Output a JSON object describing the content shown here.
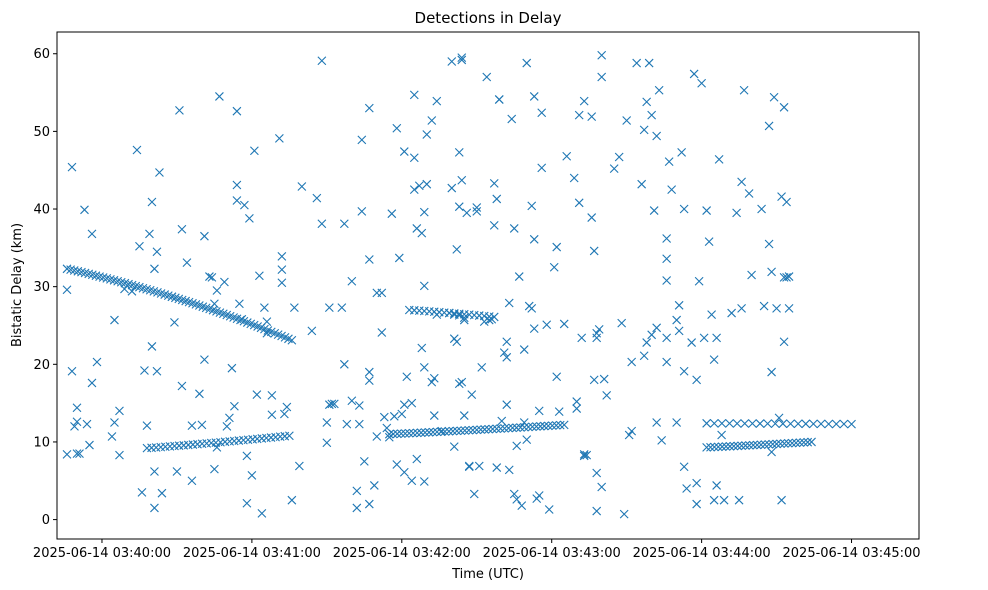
{
  "chart_data": {
    "type": "scatter",
    "title": "Detections in Delay",
    "xlabel": "Time (UTC)",
    "ylabel": "Bistatic Delay (km)",
    "marker": "x",
    "color": "#1f77b4",
    "x_unit": "seconds since 2025-06-14 03:40:00",
    "xlim": [
      -18,
      327
    ],
    "ylim": [
      -2.5,
      62.8
    ],
    "x_ticks": [
      {
        "value": 0,
        "label": "2025-06-14 03:40:00"
      },
      {
        "value": 60,
        "label": "2025-06-14 03:41:00"
      },
      {
        "value": 120,
        "label": "2025-06-14 03:42:00"
      },
      {
        "value": 180,
        "label": "2025-06-14 03:43:00"
      },
      {
        "value": 240,
        "label": "2025-06-14 03:44:00"
      },
      {
        "value": 300,
        "label": "2025-06-14 03:45:00"
      }
    ],
    "y_ticks": [
      {
        "value": 0,
        "label": "0"
      },
      {
        "value": 10,
        "label": "10"
      },
      {
        "value": 20,
        "label": "20"
      },
      {
        "value": 30,
        "label": "30"
      },
      {
        "value": 40,
        "label": "40"
      },
      {
        "value": 50,
        "label": "50"
      },
      {
        "value": 60,
        "label": "60"
      }
    ],
    "tracks": [
      {
        "name": "track-upper-1",
        "t_start": -14,
        "t_end": 28,
        "y_start": 32.3,
        "y_end": 28.7,
        "count": 30
      },
      {
        "name": "track-upper-2",
        "t_start": 28,
        "t_end": 76,
        "y_start": 28.7,
        "y_end": 23.1,
        "count": 36
      },
      {
        "name": "track-lower-1",
        "t_start": 18,
        "t_end": 75,
        "y_start": 9.2,
        "y_end": 10.8,
        "count": 32
      },
      {
        "name": "track-middle",
        "t_start": 123,
        "t_end": 157,
        "y_start": 27.0,
        "y_end": 26.1,
        "count": 18
      },
      {
        "name": "track-lower-2",
        "t_start": 115,
        "t_end": 185,
        "y_start": 11.0,
        "y_end": 12.2,
        "count": 45
      },
      {
        "name": "track-lower-3",
        "t_start": 242,
        "t_end": 284,
        "y_start": 9.3,
        "y_end": 10.0,
        "count": 28
      },
      {
        "name": "track-lower-4",
        "t_start": 242,
        "t_end": 300,
        "y_start": 12.4,
        "y_end": 12.3,
        "count": 20
      }
    ],
    "points": [
      [
        -14,
        29.6
      ],
      [
        -14,
        8.4
      ],
      [
        -12,
        45.4
      ],
      [
        -12,
        19.1
      ],
      [
        -11,
        12.0
      ],
      [
        -10,
        12.6
      ],
      [
        -10,
        14.4
      ],
      [
        -10,
        8.5
      ],
      [
        -9,
        8.5
      ],
      [
        -7,
        39.9
      ],
      [
        -6,
        12.3
      ],
      [
        -5,
        9.6
      ],
      [
        -4,
        36.8
      ],
      [
        -4,
        17.6
      ],
      [
        -2,
        20.3
      ],
      [
        4,
        10.7
      ],
      [
        5,
        25.7
      ],
      [
        5,
        12.5
      ],
      [
        7,
        14.0
      ],
      [
        7,
        8.3
      ],
      [
        9,
        29.7
      ],
      [
        12,
        29.4
      ],
      [
        14,
        47.6
      ],
      [
        15,
        35.2
      ],
      [
        16,
        3.5
      ],
      [
        17,
        19.2
      ],
      [
        18,
        12.1
      ],
      [
        19,
        36.8
      ],
      [
        20,
        40.9
      ],
      [
        20,
        22.3
      ],
      [
        21,
        32.3
      ],
      [
        21,
        6.2
      ],
      [
        21,
        1.5
      ],
      [
        22,
        34.5
      ],
      [
        22,
        19.1
      ],
      [
        23,
        44.7
      ],
      [
        24,
        3.4
      ],
      [
        29,
        25.4
      ],
      [
        30,
        6.2
      ],
      [
        31,
        52.7
      ],
      [
        32,
        37.4
      ],
      [
        32,
        17.2
      ],
      [
        34,
        33.1
      ],
      [
        36,
        12.1
      ],
      [
        36,
        5.0
      ],
      [
        39,
        16.2
      ],
      [
        40,
        12.2
      ],
      [
        41,
        36.5
      ],
      [
        41,
        20.6
      ],
      [
        43,
        31.3
      ],
      [
        44,
        31.2
      ],
      [
        45,
        27.8
      ],
      [
        45,
        6.5
      ],
      [
        46,
        9.3
      ],
      [
        46,
        29.5
      ],
      [
        47,
        54.5
      ],
      [
        49,
        30.6
      ],
      [
        50,
        12.0
      ],
      [
        51,
        13.1
      ],
      [
        52,
        19.5
      ],
      [
        53,
        14.6
      ],
      [
        54,
        43.1
      ],
      [
        54,
        41.1
      ],
      [
        54,
        52.6
      ],
      [
        55,
        27.8
      ],
      [
        56,
        25.8
      ],
      [
        57,
        40.5
      ],
      [
        58,
        2.1
      ],
      [
        58,
        8.2
      ],
      [
        59,
        38.8
      ],
      [
        60,
        5.7
      ],
      [
        61,
        47.5
      ],
      [
        62,
        16.1
      ],
      [
        63,
        31.4
      ],
      [
        64,
        0.8
      ],
      [
        65,
        27.3
      ],
      [
        66,
        25.5
      ],
      [
        66,
        24.0
      ],
      [
        68,
        16.0
      ],
      [
        68,
        13.5
      ],
      [
        71,
        49.1
      ],
      [
        72,
        33.9
      ],
      [
        72,
        32.2
      ],
      [
        72,
        30.5
      ],
      [
        73,
        13.6
      ],
      [
        74,
        14.5
      ],
      [
        76,
        2.5
      ],
      [
        77,
        27.3
      ],
      [
        79,
        6.9
      ],
      [
        80,
        42.9
      ],
      [
        84,
        24.3
      ],
      [
        86,
        41.4
      ],
      [
        88,
        59.1
      ],
      [
        88,
        38.1
      ],
      [
        90,
        9.9
      ],
      [
        90,
        12.5
      ],
      [
        91,
        14.8
      ],
      [
        91,
        27.3
      ],
      [
        92,
        14.9
      ],
      [
        93,
        14.9
      ],
      [
        96,
        27.3
      ],
      [
        97,
        20.0
      ],
      [
        97,
        38.1
      ],
      [
        98,
        12.3
      ],
      [
        100,
        15.3
      ],
      [
        100,
        30.7
      ],
      [
        102,
        3.7
      ],
      [
        102,
        1.5
      ],
      [
        103,
        14.7
      ],
      [
        103,
        12.3
      ],
      [
        104,
        39.7
      ],
      [
        104,
        48.9
      ],
      [
        105,
        7.5
      ],
      [
        107,
        19.0
      ],
      [
        107,
        17.9
      ],
      [
        107,
        33.5
      ],
      [
        107,
        53.0
      ],
      [
        107,
        2.0
      ],
      [
        109,
        4.4
      ],
      [
        110,
        29.2
      ],
      [
        110,
        10.7
      ],
      [
        112,
        24.1
      ],
      [
        112,
        29.2
      ],
      [
        113,
        13.2
      ],
      [
        114,
        11.8
      ],
      [
        115,
        10.6
      ],
      [
        116,
        39.4
      ],
      [
        117,
        13.3
      ],
      [
        118,
        50.4
      ],
      [
        118,
        7.1
      ],
      [
        119,
        33.7
      ],
      [
        120,
        13.6
      ],
      [
        121,
        47.4
      ],
      [
        121,
        6.1
      ],
      [
        121,
        14.8
      ],
      [
        122,
        18.4
      ],
      [
        124,
        5.0
      ],
      [
        124,
        15.0
      ],
      [
        125,
        54.7
      ],
      [
        125,
        42.5
      ],
      [
        125,
        46.6
      ],
      [
        126,
        7.8
      ],
      [
        126,
        37.5
      ],
      [
        127,
        43.0
      ],
      [
        128,
        36.9
      ],
      [
        128,
        22.1
      ],
      [
        129,
        30.1
      ],
      [
        129,
        19.6
      ],
      [
        129,
        39.6
      ],
      [
        129,
        4.9
      ],
      [
        130,
        49.6
      ],
      [
        130,
        43.2
      ],
      [
        132,
        17.7
      ],
      [
        132,
        51.4
      ],
      [
        133,
        13.4
      ],
      [
        133,
        18.2
      ],
      [
        134,
        53.9
      ],
      [
        134,
        26.4
      ],
      [
        136,
        11.4
      ],
      [
        139,
        26.6
      ],
      [
        140,
        59.0
      ],
      [
        140,
        42.7
      ],
      [
        141,
        26.4
      ],
      [
        141,
        9.4
      ],
      [
        141,
        23.3
      ],
      [
        142,
        34.8
      ],
      [
        142,
        22.9
      ],
      [
        143,
        26.3
      ],
      [
        143,
        17.5
      ],
      [
        143,
        40.3
      ],
      [
        143,
        47.3
      ],
      [
        144,
        17.7
      ],
      [
        144,
        59.2
      ],
      [
        144,
        59.5
      ],
      [
        144,
        43.7
      ],
      [
        145,
        26.0
      ],
      [
        145,
        25.7
      ],
      [
        145,
        13.4
      ],
      [
        146,
        39.5
      ],
      [
        147,
        6.8
      ],
      [
        147,
        6.9
      ],
      [
        148,
        16.1
      ],
      [
        149,
        3.3
      ],
      [
        150,
        40.2
      ],
      [
        150,
        39.7
      ],
      [
        151,
        6.9
      ],
      [
        152,
        19.6
      ],
      [
        153,
        25.5
      ],
      [
        154,
        57.0
      ],
      [
        155,
        25.7
      ],
      [
        156,
        25.8
      ],
      [
        157,
        43.3
      ],
      [
        157,
        37.9
      ],
      [
        158,
        41.3
      ],
      [
        158,
        6.7
      ],
      [
        159,
        54.1
      ],
      [
        159,
        54.1
      ],
      [
        160,
        12.7
      ],
      [
        161,
        21.5
      ],
      [
        162,
        14.8
      ],
      [
        162,
        22.9
      ],
      [
        162,
        20.9
      ],
      [
        163,
        27.9
      ],
      [
        163,
        6.4
      ],
      [
        164,
        51.6
      ],
      [
        165,
        37.5
      ],
      [
        165,
        3.3
      ],
      [
        166,
        2.6
      ],
      [
        166,
        9.5
      ],
      [
        167,
        31.3
      ],
      [
        168,
        1.8
      ],
      [
        169,
        12.5
      ],
      [
        169,
        21.9
      ],
      [
        170,
        58.8
      ],
      [
        170,
        10.3
      ],
      [
        171,
        27.5
      ],
      [
        172,
        27.2
      ],
      [
        172,
        40.4
      ],
      [
        173,
        36.1
      ],
      [
        173,
        24.6
      ],
      [
        173,
        54.5
      ],
      [
        174,
        2.7
      ],
      [
        175,
        14.0
      ],
      [
        175,
        3.1
      ],
      [
        176,
        45.3
      ],
      [
        176,
        52.4
      ],
      [
        178,
        25.1
      ],
      [
        179,
        1.3
      ],
      [
        181,
        32.5
      ],
      [
        182,
        35.1
      ],
      [
        182,
        18.4
      ],
      [
        183,
        13.9
      ],
      [
        185,
        25.2
      ],
      [
        186,
        46.8
      ],
      [
        189,
        44.0
      ],
      [
        190,
        14.3
      ],
      [
        190,
        15.2
      ],
      [
        191,
        40.8
      ],
      [
        191,
        52.1
      ],
      [
        192,
        23.4
      ],
      [
        193,
        53.9
      ],
      [
        193,
        8.4
      ],
      [
        193,
        8.2
      ],
      [
        194,
        8.3
      ],
      [
        196,
        51.9
      ],
      [
        196,
        38.9
      ],
      [
        197,
        34.6
      ],
      [
        197,
        18.0
      ],
      [
        198,
        23.4
      ],
      [
        198,
        24.0
      ],
      [
        198,
        1.1
      ],
      [
        198,
        6.0
      ],
      [
        199,
        24.5
      ],
      [
        200,
        59.8
      ],
      [
        200,
        57.0
      ],
      [
        200,
        4.2
      ],
      [
        201,
        18.1
      ],
      [
        202,
        16.0
      ],
      [
        205,
        45.2
      ],
      [
        207,
        46.7
      ],
      [
        208,
        25.3
      ],
      [
        209,
        0.7
      ],
      [
        210,
        51.4
      ],
      [
        211,
        10.9
      ],
      [
        212,
        20.3
      ],
      [
        212,
        11.4
      ],
      [
        214,
        58.8
      ],
      [
        216,
        43.2
      ],
      [
        217,
        50.2
      ],
      [
        217,
        21.1
      ],
      [
        218,
        53.8
      ],
      [
        218,
        22.8
      ],
      [
        219,
        58.8
      ],
      [
        220,
        52.1
      ],
      [
        220,
        23.8
      ],
      [
        221,
        39.8
      ],
      [
        222,
        12.5
      ],
      [
        222,
        24.7
      ],
      [
        222,
        49.4
      ],
      [
        223,
        55.3
      ],
      [
        224,
        10.2
      ],
      [
        226,
        36.2
      ],
      [
        226,
        33.6
      ],
      [
        226,
        30.8
      ],
      [
        226,
        23.4
      ],
      [
        226,
        20.3
      ],
      [
        227,
        46.1
      ],
      [
        228,
        42.5
      ],
      [
        230,
        25.7
      ],
      [
        230,
        12.5
      ],
      [
        231,
        27.6
      ],
      [
        231,
        24.3
      ],
      [
        232,
        47.3
      ],
      [
        233,
        40.0
      ],
      [
        233,
        19.1
      ],
      [
        233,
        6.8
      ],
      [
        234,
        4.0
      ],
      [
        236,
        22.8
      ],
      [
        237,
        57.4
      ],
      [
        238,
        18.0
      ],
      [
        238,
        4.7
      ],
      [
        238,
        2.0
      ],
      [
        239,
        30.7
      ],
      [
        240,
        56.2
      ],
      [
        241,
        23.4
      ],
      [
        242,
        39.8
      ],
      [
        243,
        35.8
      ],
      [
        244,
        26.4
      ],
      [
        245,
        20.6
      ],
      [
        245,
        2.5
      ],
      [
        246,
        23.4
      ],
      [
        246,
        4.4
      ],
      [
        247,
        46.4
      ],
      [
        248,
        10.9
      ],
      [
        249,
        2.5
      ],
      [
        252,
        26.6
      ],
      [
        254,
        39.5
      ],
      [
        255,
        2.5
      ],
      [
        256,
        43.5
      ],
      [
        256,
        27.2
      ],
      [
        257,
        55.3
      ],
      [
        259,
        42.0
      ],
      [
        260,
        31.5
      ],
      [
        264,
        40.0
      ],
      [
        265,
        27.5
      ],
      [
        267,
        50.7
      ],
      [
        267,
        35.5
      ],
      [
        268,
        31.9
      ],
      [
        268,
        19.0
      ],
      [
        268,
        8.7
      ],
      [
        269,
        54.4
      ],
      [
        270,
        27.2
      ],
      [
        271,
        13.1
      ],
      [
        272,
        2.5
      ],
      [
        272,
        41.6
      ],
      [
        273,
        53.1
      ],
      [
        273,
        22.9
      ],
      [
        274,
        40.9
      ],
      [
        273,
        31.2
      ],
      [
        274,
        31.2
      ],
      [
        275,
        31.3
      ],
      [
        275,
        27.2
      ]
    ]
  }
}
